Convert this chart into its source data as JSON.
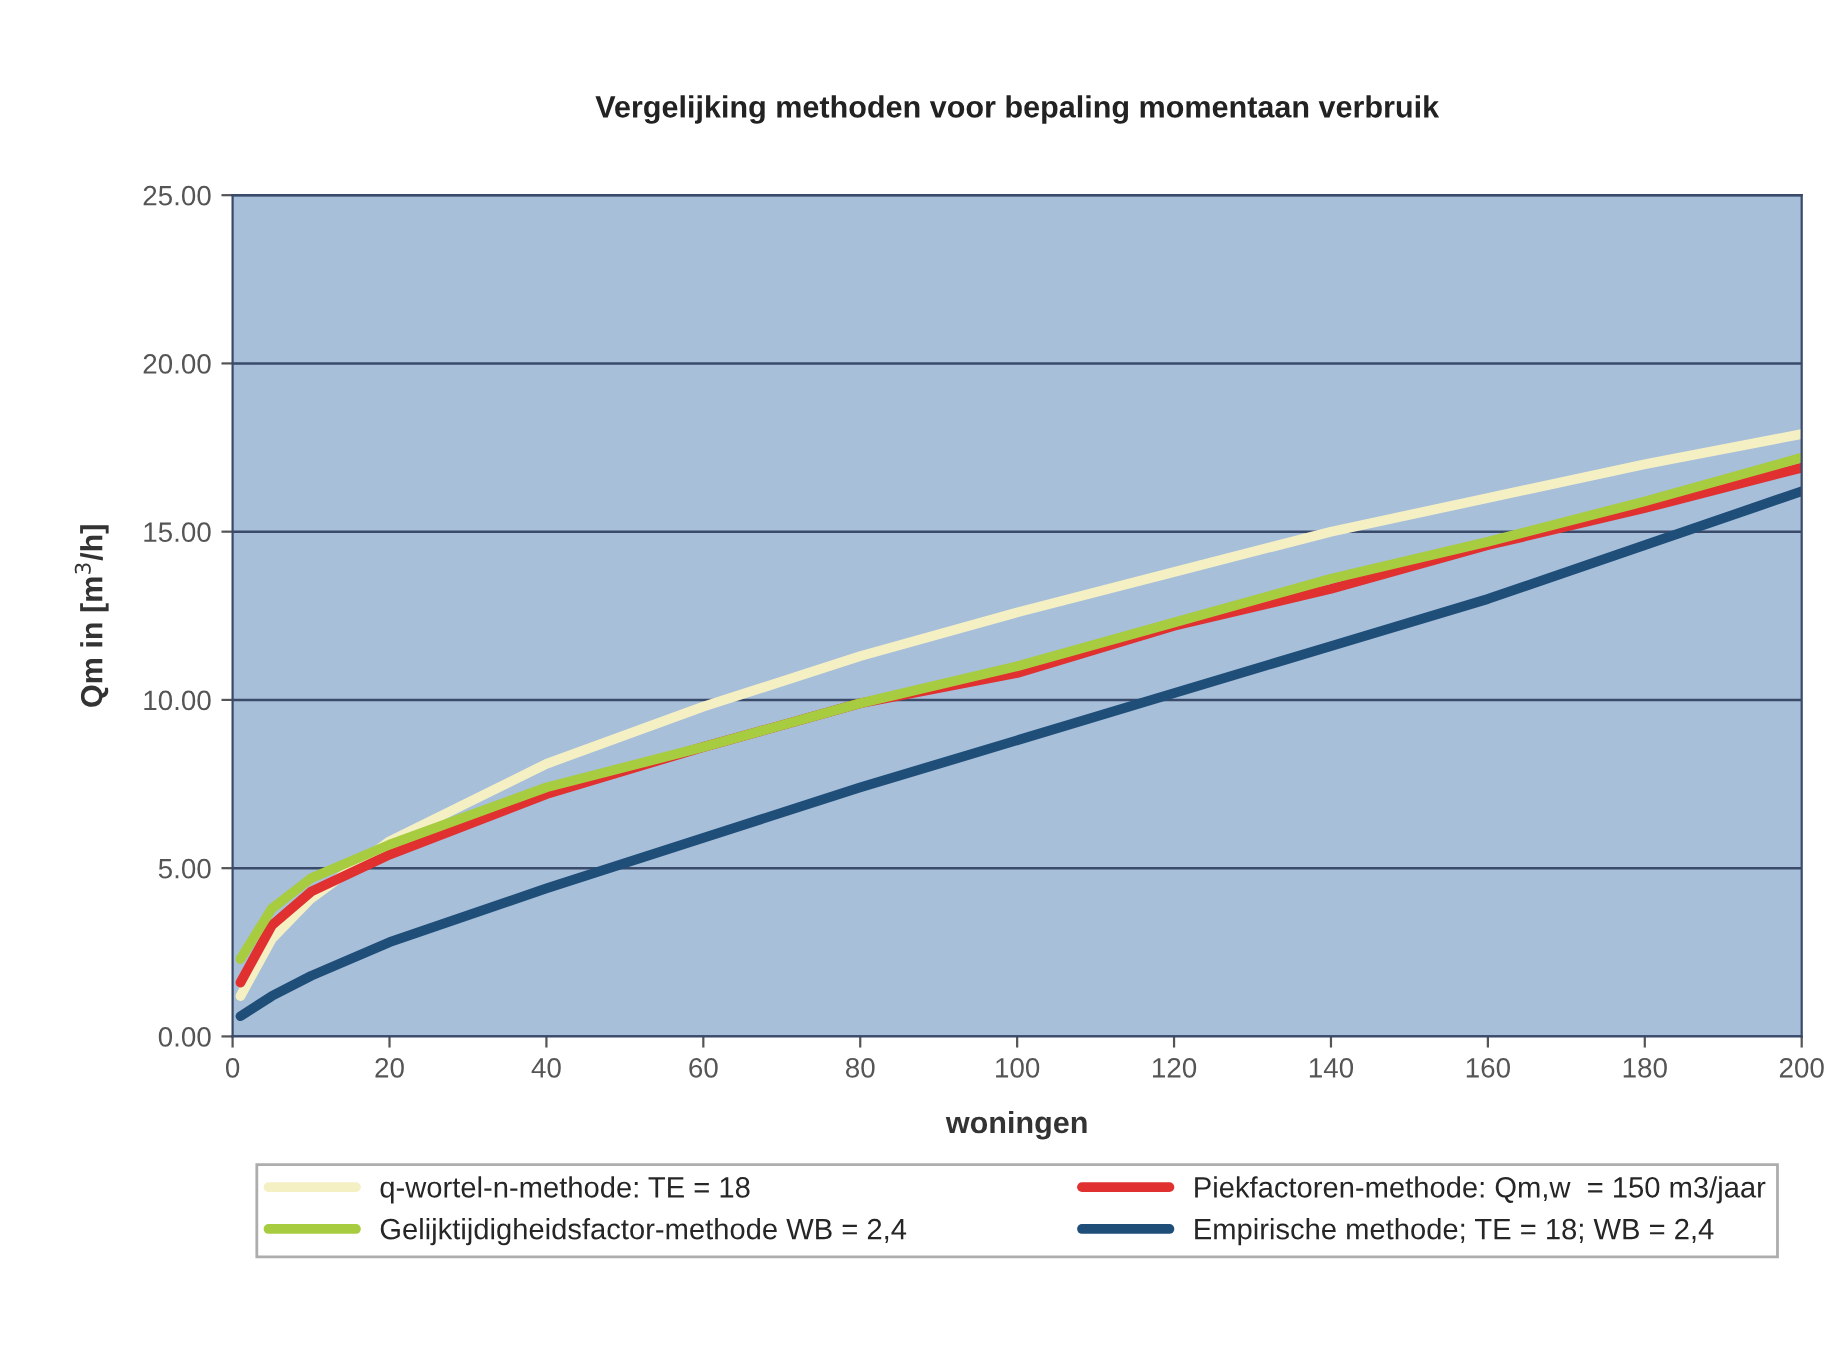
{
  "chart_data": {
    "type": "line",
    "title": "Vergelijking methoden voor bepaling momentaan verbruik",
    "xlabel": "woningen",
    "ylabel": "Qm in [m$^{3}$/h]",
    "xlim": [
      0,
      200
    ],
    "xticks": [
      0,
      20,
      40,
      60,
      80,
      100,
      120,
      140,
      160,
      180,
      200
    ],
    "ylim": [
      0,
      25
    ],
    "yticks": [
      {
        "value": 0,
        "label": "0.00"
      },
      {
        "value": 5,
        "label": "5.00"
      },
      {
        "value": 10,
        "label": "10.00"
      },
      {
        "value": 15,
        "label": "15.00"
      },
      {
        "value": 20,
        "label": "20.00"
      },
      {
        "value": 25,
        "label": "25.00"
      }
    ],
    "grid": "y",
    "legend": "bottom",
    "marker": "none",
    "line_style": "solid",
    "series": [
      {
        "name": "q-wortel-n-methode: TE = 18",
        "color": "#f5f0c4",
        "x": [
          1,
          5,
          10,
          20,
          40,
          60,
          80,
          100,
          120,
          140,
          160,
          180,
          200
        ],
        "values": [
          1.2,
          2.9,
          4.1,
          5.8,
          8.1,
          9.8,
          11.3,
          12.6,
          13.8,
          15.0,
          16.0,
          17.0,
          17.9
        ]
      },
      {
        "name": "Piekfactoren-methode: Qm,w  = 150 m3/jaar",
        "color": "#e03030",
        "x": [
          1,
          5,
          10,
          20,
          40,
          60,
          80,
          100,
          120,
          140,
          160,
          180,
          200
        ],
        "values": [
          1.6,
          3.3,
          4.3,
          5.4,
          7.2,
          8.6,
          9.9,
          10.8,
          12.2,
          13.3,
          14.6,
          15.7,
          16.9
        ]
      },
      {
        "name": "Gelijktijdigheidsfactor-methode WB = 2,4",
        "color": "#a8cc40",
        "x": [
          1,
          5,
          10,
          20,
          40,
          60,
          80,
          100,
          120,
          140,
          160,
          180,
          200
        ],
        "values": [
          2.3,
          3.8,
          4.7,
          5.7,
          7.4,
          8.6,
          9.9,
          11.0,
          12.3,
          13.6,
          14.7,
          15.9,
          17.2
        ]
      },
      {
        "name": "Empirische methode; TE = 18; WB = 2,4",
        "color": "#1f4e79",
        "x": [
          1,
          5,
          10,
          20,
          40,
          60,
          80,
          100,
          120,
          140,
          160,
          180,
          200
        ],
        "values": [
          0.6,
          1.2,
          1.8,
          2.8,
          4.4,
          5.9,
          7.4,
          8.8,
          10.2,
          11.6,
          13.0,
          14.6,
          16.2
        ]
      }
    ]
  }
}
